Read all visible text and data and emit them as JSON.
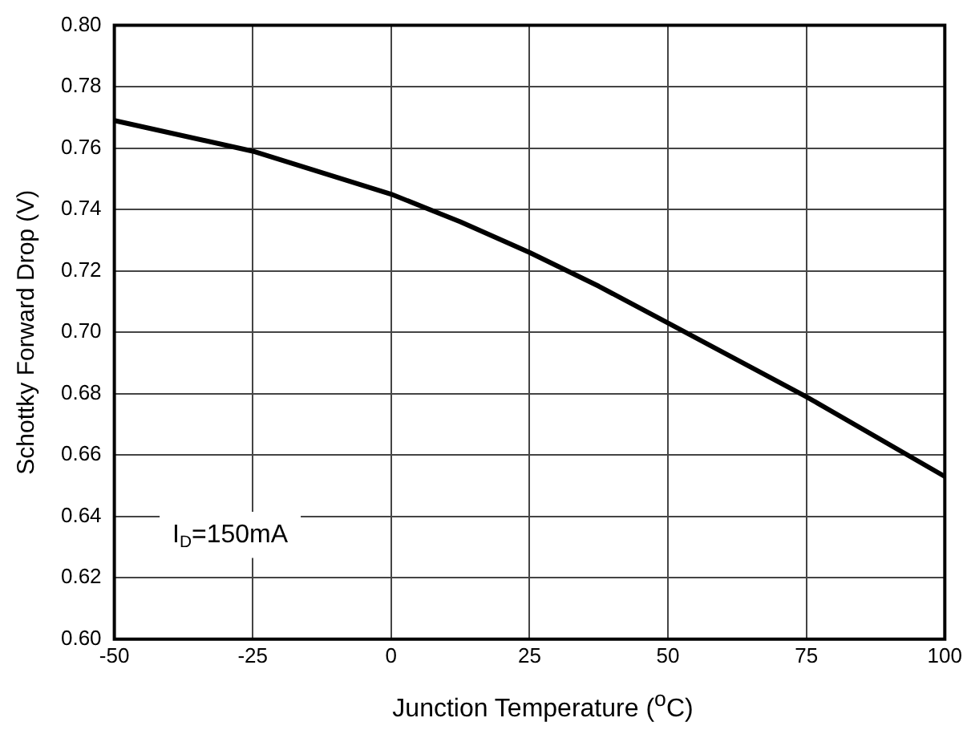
{
  "chart_data": {
    "type": "line",
    "xlabel": "Junction Temperature ($^{o}$C)",
    "ylabel": "Schottky Forward Drop (V)",
    "x": [
      -50,
      -25,
      0,
      12.5,
      25,
      37.5,
      50,
      75,
      100
    ],
    "series": [
      {
        "color": "#000000",
        "values": [
          0.769,
          0.759,
          0.745,
          0.736,
          0.726,
          0.715,
          0.703,
          0.679,
          0.653
        ]
      }
    ],
    "xlim": [
      -50,
      100
    ],
    "xticks": [
      -50,
      -25,
      0,
      25,
      50,
      75,
      100
    ],
    "ylim": [
      0.6,
      0.8
    ],
    "yticks": [
      {
        "value": 0.6,
        "label": "0.60"
      },
      {
        "value": 0.62,
        "label": "0.62"
      },
      {
        "value": 0.64,
        "label": "0.64"
      },
      {
        "value": 0.66,
        "label": "0.66"
      },
      {
        "value": 0.68,
        "label": "0.68"
      },
      {
        "value": 0.7,
        "label": "0.70"
      },
      {
        "value": 0.72,
        "label": "0.72"
      },
      {
        "value": 0.74,
        "label": "0.74"
      },
      {
        "value": 0.76,
        "label": "0.76"
      },
      {
        "value": 0.78,
        "label": "0.78"
      },
      {
        "value": 0.8,
        "label": "0.80"
      }
    ],
    "grid": true,
    "legend": false,
    "marker": "none",
    "line_style": "solid",
    "annotations": [
      "I$_{D}$=150mA"
    ]
  }
}
